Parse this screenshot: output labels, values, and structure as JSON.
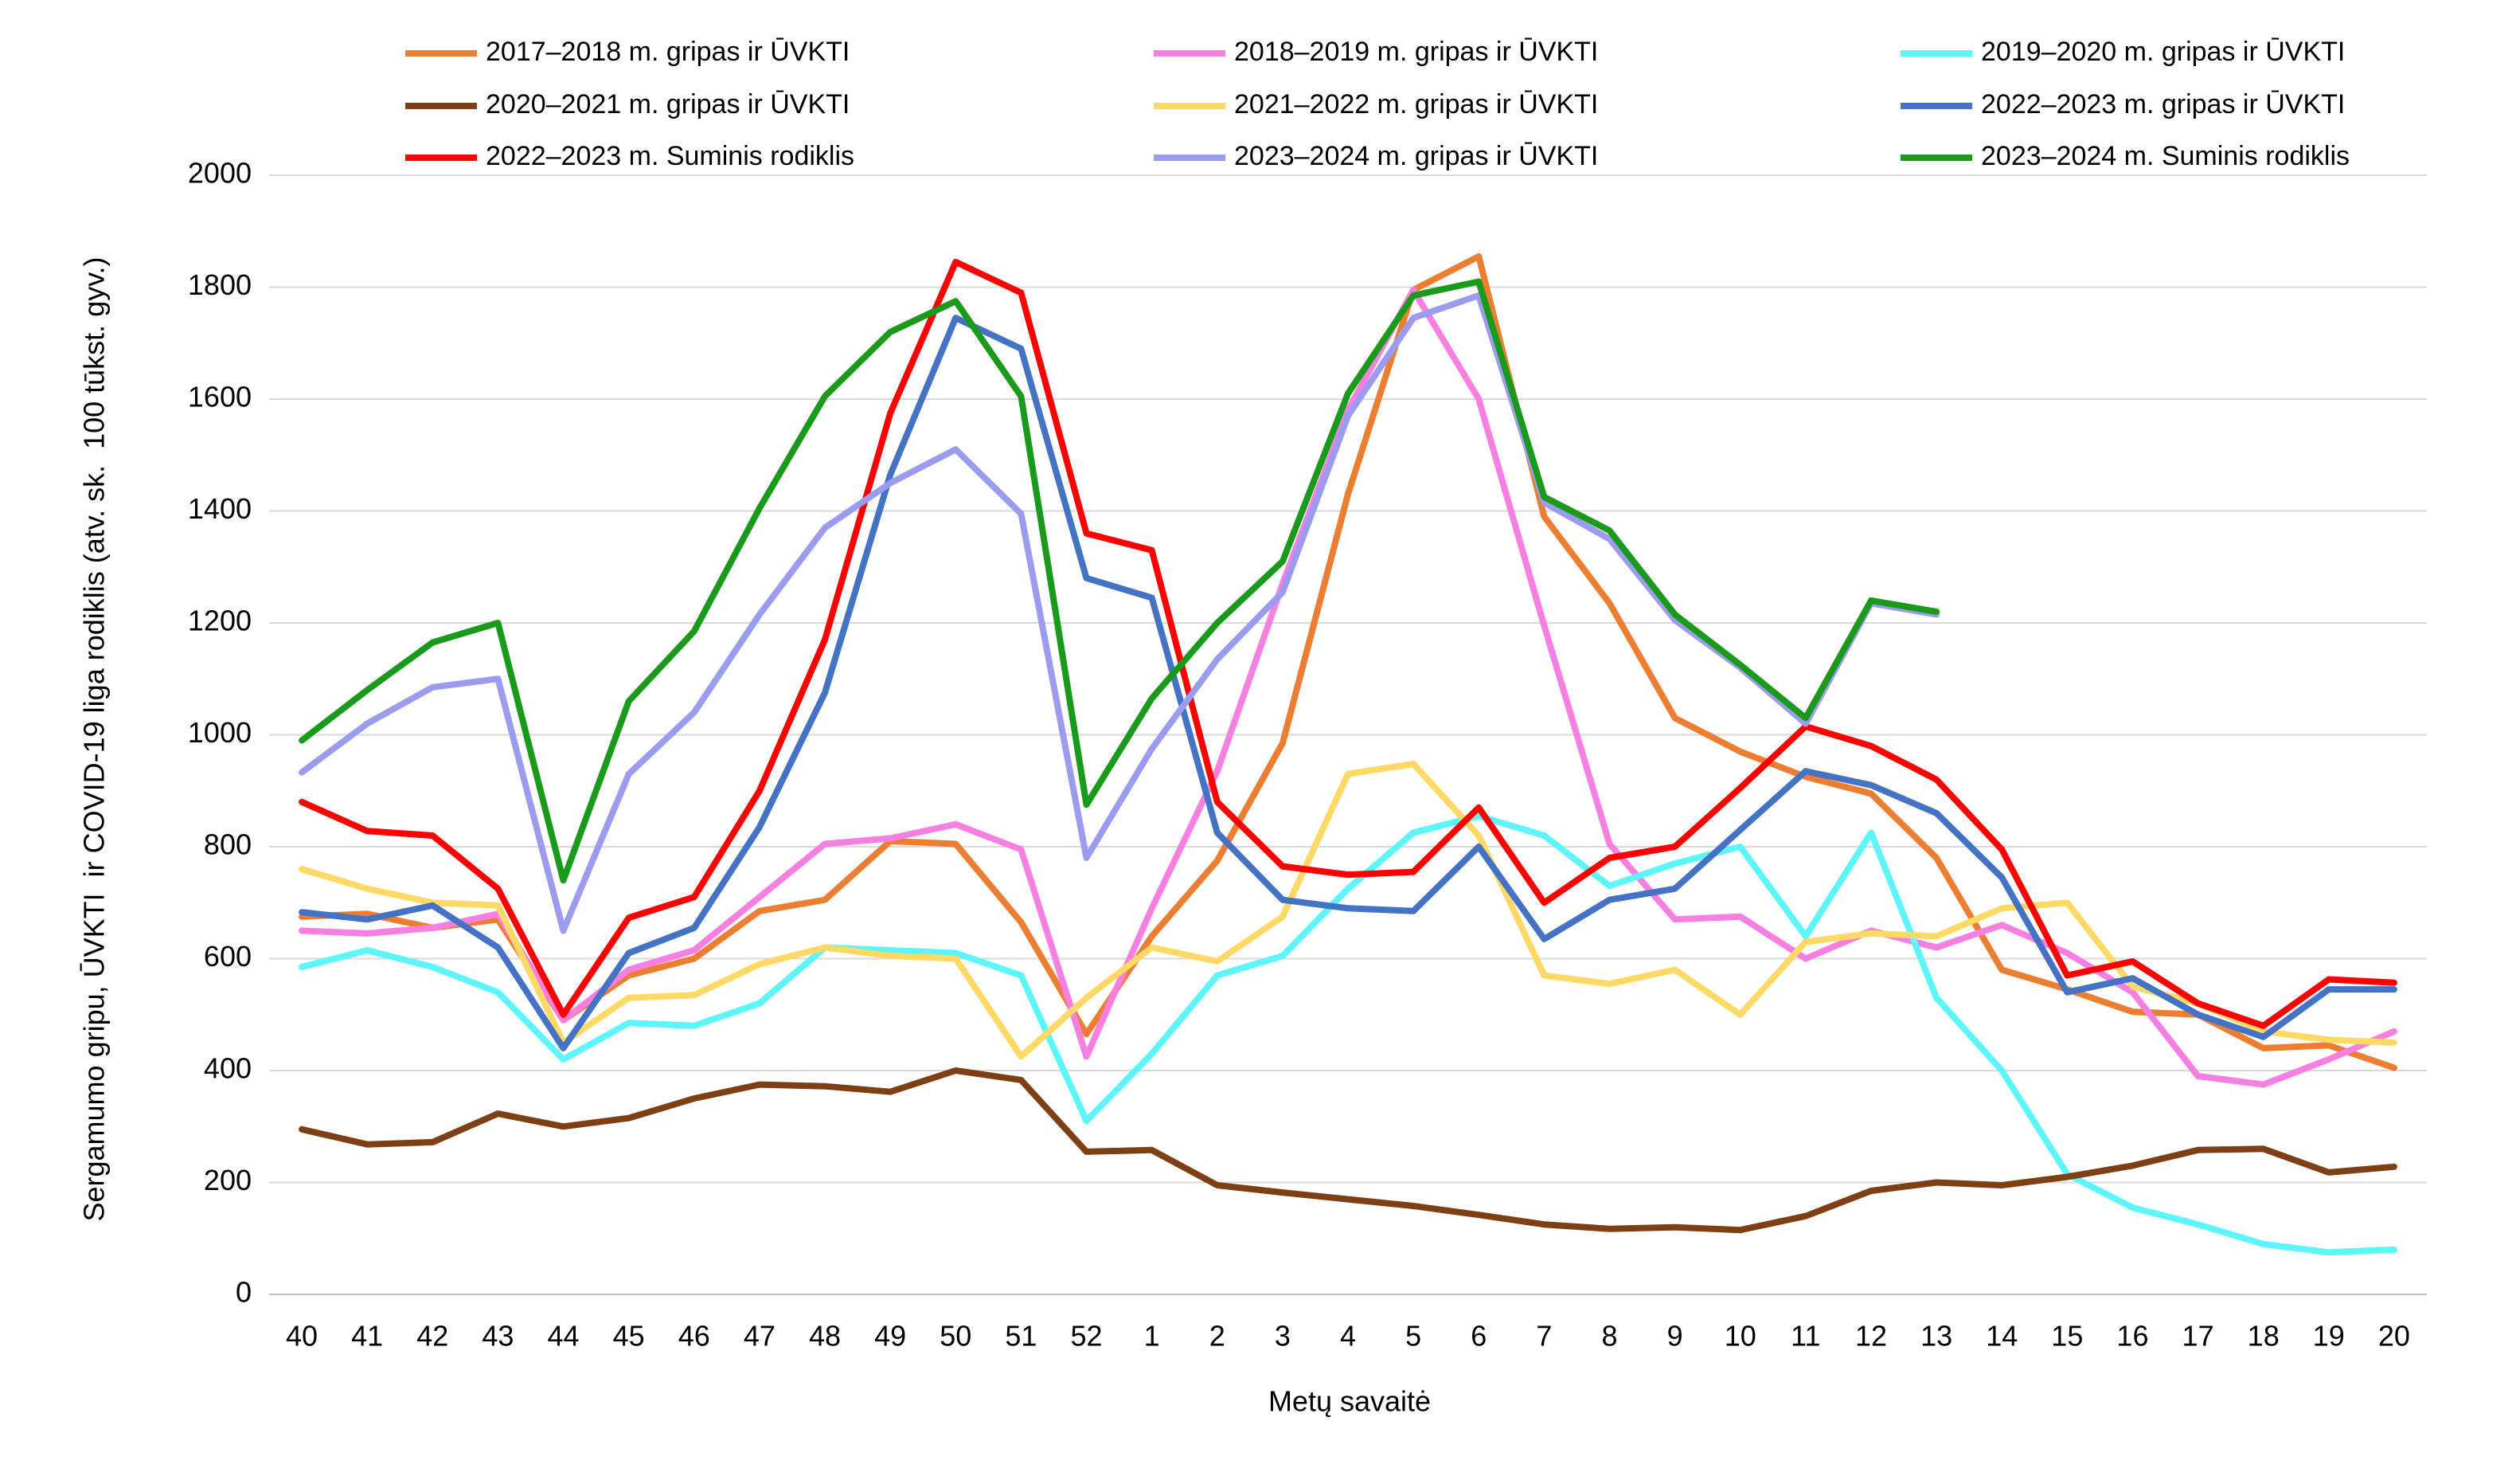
{
  "chart_data": {
    "type": "line",
    "x_label": "Metų savaitė",
    "y_label": "Sergamumo gripu, ŪVKTI  ir COVID-19 liga rodiklis (atv. sk.  100 tūkst. gyv.)",
    "categories": [
      "40",
      "41",
      "42",
      "43",
      "44",
      "45",
      "46",
      "47",
      "48",
      "49",
      "50",
      "51",
      "52",
      "1",
      "2",
      "3",
      "4",
      "5",
      "6",
      "7",
      "8",
      "9",
      "10",
      "11",
      "12",
      "13",
      "14",
      "15",
      "16",
      "17",
      "18",
      "19",
      "20"
    ],
    "ylim": [
      0,
      2000
    ],
    "yticks": [
      0,
      200,
      400,
      600,
      800,
      1000,
      1200,
      1400,
      1600,
      1800,
      2000
    ],
    "grid": true,
    "legend": "top",
    "series": [
      {
        "name": "2017–2018 m. gripas ir ŪVKTI",
        "color": "#ed7d31",
        "values": [
          675,
          680,
          655,
          670,
          490,
          570,
          600,
          685,
          705,
          810,
          805,
          665,
          465,
          640,
          775,
          985,
          1430,
          1795,
          1855,
          1390,
          1235,
          1030,
          970,
          925,
          895,
          780,
          580,
          545,
          505,
          500,
          440,
          445,
          405
        ]
      },
      {
        "name": "2018–2019 m. gripas ir ŪVKTI",
        "color": "#f77fe2",
        "values": [
          650,
          645,
          655,
          680,
          490,
          580,
          615,
          710,
          805,
          815,
          840,
          795,
          425,
          690,
          935,
          1270,
          1580,
          1795,
          1600,
          1195,
          805,
          670,
          675,
          600,
          650,
          620,
          660,
          610,
          540,
          390,
          375,
          420,
          470
        ]
      },
      {
        "name": "2019–2020 m. gripas ir ŪVKTI",
        "color": "#5cf6fa",
        "values": [
          585,
          615,
          585,
          540,
          420,
          485,
          480,
          520,
          620,
          615,
          610,
          570,
          310,
          430,
          570,
          605,
          725,
          825,
          855,
          820,
          730,
          770,
          800,
          640,
          825,
          530,
          400,
          215,
          155,
          125,
          90,
          75,
          80
        ]
      },
      {
        "name": "2020–2021 m. gripas ir ŪVKTI",
        "color": "#7f3f14",
        "values": [
          295,
          268,
          272,
          323,
          300,
          315,
          350,
          375,
          372,
          362,
          400,
          383,
          255,
          258,
          195,
          182,
          170,
          158,
          142,
          125,
          117,
          120,
          115,
          140,
          185,
          200,
          195,
          210,
          230,
          258,
          260,
          218,
          228
        ]
      },
      {
        "name": "2021–2022 m. gripas ir ŪVKTI",
        "color": "#ffd966",
        "values": [
          760,
          725,
          700,
          695,
          450,
          530,
          535,
          590,
          620,
          605,
          600,
          425,
          530,
          620,
          595,
          675,
          930,
          948,
          820,
          570,
          555,
          580,
          500,
          630,
          645,
          640,
          690,
          700,
          550,
          520,
          470,
          455,
          450
        ]
      },
      {
        "name": "2022–2023 m. gripas ir ŪVKTI",
        "color": "#4472c4",
        "values": [
          683,
          670,
          695,
          620,
          440,
          610,
          655,
          835,
          1075,
          1465,
          1745,
          1690,
          1280,
          1245,
          825,
          705,
          690,
          685,
          800,
          635,
          705,
          725,
          830,
          935,
          910,
          860,
          745,
          540,
          565,
          500,
          460,
          545,
          545
        ]
      },
      {
        "name": "2022–2023 m. Suminis rodiklis",
        "color": "#ff0000",
        "values": [
          880,
          828,
          820,
          725,
          500,
          673,
          710,
          900,
          1170,
          1575,
          1845,
          1790,
          1360,
          1330,
          880,
          765,
          750,
          755,
          870,
          700,
          780,
          800,
          905,
          1015,
          980,
          920,
          795,
          570,
          595,
          520,
          480,
          563,
          557
        ]
      },
      {
        "name": "2023–2024 m. gripas ir ŪVKTI",
        "color": "#9b9bef",
        "values": [
          933,
          1020,
          1085,
          1100,
          650,
          930,
          1040,
          1215,
          1370,
          1450,
          1510,
          1395,
          780,
          975,
          1135,
          1255,
          1570,
          1745,
          1785,
          1415,
          1350,
          1205,
          1120,
          1020,
          1235,
          1215,
          null,
          null,
          null,
          null,
          null,
          null,
          null
        ]
      },
      {
        "name": "2023–2024 m. Suminis rodiklis",
        "color": "#1a9a1a",
        "values": [
          990,
          1080,
          1165,
          1200,
          740,
          1060,
          1185,
          1405,
          1605,
          1720,
          1775,
          1605,
          875,
          1065,
          1200,
          1310,
          1610,
          1785,
          1810,
          1425,
          1365,
          1215,
          1125,
          1030,
          1240,
          1220,
          null,
          null,
          null,
          null,
          null,
          null,
          null
        ]
      }
    ]
  }
}
